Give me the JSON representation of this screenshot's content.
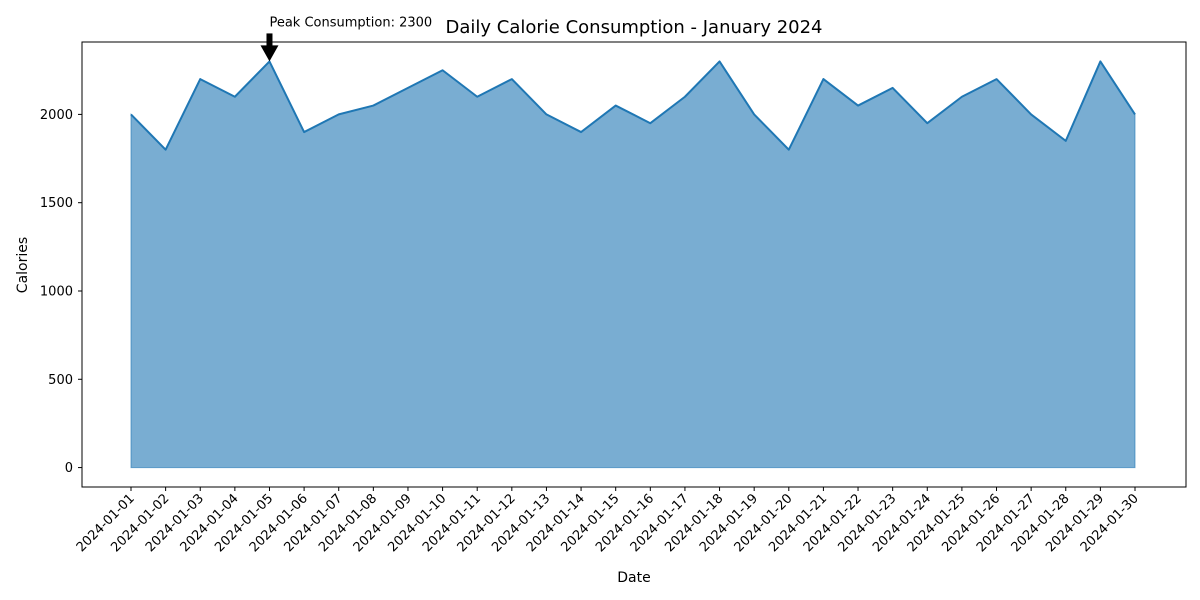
{
  "chart_data": {
    "type": "area",
    "title": "Daily Calorie Consumption - January 2024",
    "xlabel": "Date",
    "ylabel": "Calories",
    "ylim": [
      -110,
      2410
    ],
    "yticks": [
      0,
      500,
      1000,
      1500,
      2000
    ],
    "x": [
      "2024-01-01",
      "2024-01-02",
      "2024-01-03",
      "2024-01-04",
      "2024-01-05",
      "2024-01-06",
      "2024-01-07",
      "2024-01-08",
      "2024-01-09",
      "2024-01-10",
      "2024-01-11",
      "2024-01-12",
      "2024-01-13",
      "2024-01-14",
      "2024-01-15",
      "2024-01-16",
      "2024-01-17",
      "2024-01-18",
      "2024-01-19",
      "2024-01-20",
      "2024-01-21",
      "2024-01-22",
      "2024-01-23",
      "2024-01-24",
      "2024-01-25",
      "2024-01-26",
      "2024-01-27",
      "2024-01-28",
      "2024-01-29",
      "2024-01-30"
    ],
    "values": [
      2000,
      1800,
      2200,
      2100,
      2300,
      1900,
      2000,
      2050,
      2150,
      2250,
      2100,
      2200,
      2000,
      1900,
      2050,
      1950,
      2100,
      2300,
      2000,
      1800,
      2200,
      2050,
      2150,
      1950,
      2100,
      2200,
      2000,
      1850,
      2300,
      2000
    ],
    "fill_color": "#1f77b4",
    "line_color": "#1f77b4",
    "grid": false,
    "annotation": {
      "text": "Peak Consumption: 2300",
      "x": "2024-01-05",
      "y": 2300
    }
  }
}
